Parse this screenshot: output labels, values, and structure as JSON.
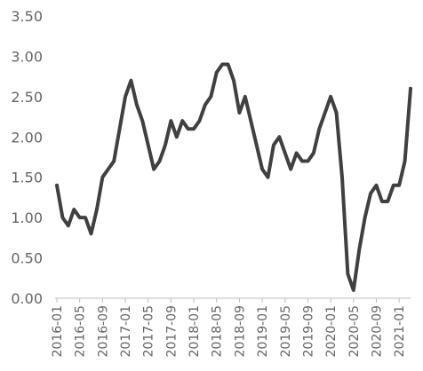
{
  "chart_data": {
    "type": "line",
    "title": "",
    "xlabel": "",
    "ylabel": "",
    "ylim": [
      0,
      3.5
    ],
    "yticks": [
      "0.00",
      "0.50",
      "1.00",
      "1.50",
      "2.00",
      "2.50",
      "3.00",
      "3.50"
    ],
    "xtick_labels": [
      "2016-01",
      "2016-05",
      "2016-09",
      "2017-01",
      "2017-05",
      "2017-09",
      "2018-01",
      "2018-05",
      "2018-09",
      "2019-01",
      "2019-05",
      "2019-09",
      "2020-01",
      "2020-05",
      "2020-09",
      "2021-01"
    ],
    "grid": false,
    "legend": "none",
    "line_color": "#404040",
    "x": [
      "2016-01",
      "2016-02",
      "2016-03",
      "2016-04",
      "2016-05",
      "2016-06",
      "2016-07",
      "2016-08",
      "2016-09",
      "2016-10",
      "2016-11",
      "2016-12",
      "2017-01",
      "2017-02",
      "2017-03",
      "2017-04",
      "2017-05",
      "2017-06",
      "2017-07",
      "2017-08",
      "2017-09",
      "2017-10",
      "2017-11",
      "2017-12",
      "2018-01",
      "2018-02",
      "2018-03",
      "2018-04",
      "2018-05",
      "2018-06",
      "2018-07",
      "2018-08",
      "2018-09",
      "2018-10",
      "2018-11",
      "2018-12",
      "2019-01",
      "2019-02",
      "2019-03",
      "2019-04",
      "2019-05",
      "2019-06",
      "2019-07",
      "2019-08",
      "2019-09",
      "2019-10",
      "2019-11",
      "2019-12",
      "2020-01",
      "2020-02",
      "2020-03",
      "2020-04",
      "2020-05",
      "2020-06",
      "2020-07",
      "2020-08",
      "2020-09",
      "2020-10",
      "2020-11",
      "2020-12",
      "2021-01",
      "2021-02",
      "2021-03"
    ],
    "series": [
      {
        "values": [
          1.4,
          1.0,
          0.9,
          1.1,
          1.0,
          1.0,
          0.8,
          1.1,
          1.5,
          1.6,
          1.7,
          2.1,
          2.5,
          2.7,
          2.4,
          2.2,
          1.9,
          1.6,
          1.7,
          1.9,
          2.2,
          2.0,
          2.2,
          2.1,
          2.1,
          2.2,
          2.4,
          2.5,
          2.8,
          2.9,
          2.9,
          2.7,
          2.3,
          2.5,
          2.2,
          1.9,
          1.6,
          1.5,
          1.9,
          2.0,
          1.8,
          1.6,
          1.8,
          1.7,
          1.7,
          1.8,
          2.1,
          2.3,
          2.5,
          2.3,
          1.5,
          0.3,
          0.1,
          0.6,
          1.0,
          1.3,
          1.4,
          1.2,
          1.2,
          1.4,
          1.4,
          1.7,
          2.6
        ]
      }
    ]
  }
}
